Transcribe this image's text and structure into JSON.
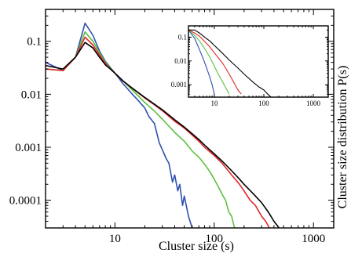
{
  "chart_data": [
    {
      "type": "line",
      "panel": "main",
      "xlabel": "Cluster size (s)",
      "ylabel": "Cluster size distribution P(s)",
      "xscale": "log",
      "yscale": "log",
      "xlim": [
        2,
        1600
      ],
      "ylim": [
        3e-05,
        0.4
      ],
      "xticks": [
        {
          "value": 10,
          "label": "10"
        },
        {
          "value": 100,
          "label": "100"
        },
        {
          "value": 1000,
          "label": "1000"
        }
      ],
      "yticks": [
        {
          "value": 0.1,
          "label": "0.1"
        },
        {
          "value": 0.01,
          "label": "0.01"
        },
        {
          "value": 0.001,
          "label": "0.001"
        },
        {
          "value": 0.0001,
          "label": "0.0001"
        }
      ],
      "grid": false,
      "series": [
        {
          "color": "#3050b0",
          "x": [
            2,
            3,
            4,
            5,
            6,
            7,
            8,
            9,
            10,
            11,
            12,
            13,
            15,
            17,
            20,
            22,
            25,
            28,
            30,
            33,
            35,
            38,
            40,
            43,
            45,
            48,
            50,
            55,
            60
          ],
          "y": [
            0.04,
            0.028,
            0.05,
            0.22,
            0.13,
            0.065,
            0.042,
            0.032,
            0.025,
            0.02,
            0.016,
            0.0135,
            0.01,
            0.0078,
            0.0055,
            0.0038,
            0.0028,
            0.0012,
            0.0009,
            0.0006,
            0.0005,
            0.00022,
            0.0003,
            0.00015,
            0.0002,
            8e-05,
            0.00012,
            5e-05,
            3e-05
          ]
        },
        {
          "color": "#5cc040",
          "x": [
            2,
            3,
            4,
            5,
            6,
            7,
            8,
            9,
            10,
            12,
            15,
            20,
            25,
            30,
            40,
            50,
            60,
            70,
            80,
            90,
            100,
            110,
            120,
            130,
            140,
            150,
            160
          ],
          "y": [
            0.03,
            0.028,
            0.05,
            0.15,
            0.1,
            0.06,
            0.04,
            0.031,
            0.025,
            0.018,
            0.012,
            0.007,
            0.0048,
            0.0034,
            0.0019,
            0.0013,
            0.00085,
            0.00065,
            0.00048,
            0.00035,
            0.00025,
            0.00018,
            0.00013,
            0.0001,
            6e-05,
            5e-05,
            3e-05
          ]
        },
        {
          "color": "#e02828",
          "x": [
            2,
            3,
            4,
            5,
            6,
            7,
            8,
            9,
            10,
            12,
            15,
            20,
            25,
            30,
            40,
            50,
            60,
            70,
            80,
            100,
            120,
            150,
            180,
            200,
            230,
            260,
            300,
            330,
            360
          ],
          "y": [
            0.03,
            0.028,
            0.05,
            0.12,
            0.085,
            0.055,
            0.038,
            0.03,
            0.025,
            0.018,
            0.013,
            0.0085,
            0.0063,
            0.0049,
            0.0031,
            0.0023,
            0.0017,
            0.0013,
            0.001,
            0.0007,
            0.0005,
            0.0003,
            0.0002,
            0.00015,
            0.0001,
            8e-05,
            5e-05,
            4e-05,
            3e-05
          ]
        },
        {
          "color": "#000000",
          "x": [
            2,
            3,
            4,
            5,
            6,
            7,
            8,
            9,
            10,
            12,
            15,
            20,
            25,
            30,
            40,
            50,
            60,
            70,
            80,
            100,
            120,
            150,
            180,
            200,
            250,
            300,
            350,
            400,
            450
          ],
          "y": [
            0.035,
            0.03,
            0.05,
            0.095,
            0.075,
            0.05,
            0.036,
            0.03,
            0.025,
            0.018,
            0.013,
            0.0087,
            0.0065,
            0.0051,
            0.0033,
            0.0024,
            0.0018,
            0.0014,
            0.0011,
            0.00075,
            0.00055,
            0.00036,
            0.00025,
            0.0002,
            0.00013,
            9e-05,
            6e-05,
            4e-05,
            3e-05
          ]
        }
      ]
    },
    {
      "type": "line",
      "panel": "inset",
      "xscale": "log",
      "yscale": "log",
      "xlim": [
        3,
        2000
      ],
      "ylim": [
        0.0003,
        0.3
      ],
      "xticks": [
        {
          "value": 10,
          "label": "10"
        },
        {
          "value": 100,
          "label": "100"
        },
        {
          "value": 1000,
          "label": "1000"
        }
      ],
      "yticks": [
        {
          "value": 0.1,
          "label": "0.1"
        },
        {
          "value": 0.01,
          "label": "0.01"
        },
        {
          "value": 0.001,
          "label": "0.001"
        }
      ],
      "series": [
        {
          "color": "#3050b0",
          "x": [
            3,
            4,
            5,
            6,
            7,
            8,
            9,
            10
          ],
          "y": [
            0.2,
            0.09,
            0.03,
            0.012,
            0.005,
            0.0022,
            0.001,
            0.0004
          ]
        },
        {
          "color": "#5cc040",
          "x": [
            3,
            4,
            5,
            6,
            8,
            10,
            12,
            15,
            18,
            20
          ],
          "y": [
            0.2,
            0.12,
            0.07,
            0.04,
            0.015,
            0.006,
            0.0028,
            0.0012,
            0.0006,
            0.0004
          ]
        },
        {
          "color": "#e02828",
          "x": [
            3,
            4,
            5,
            6,
            8,
            10,
            15,
            20,
            25,
            30,
            35
          ],
          "y": [
            0.2,
            0.15,
            0.11,
            0.075,
            0.04,
            0.022,
            0.0075,
            0.0028,
            0.0012,
            0.0006,
            0.0004
          ]
        },
        {
          "color": "#000000",
          "x": [
            3,
            4,
            5,
            6,
            8,
            10,
            15,
            20,
            30,
            40,
            60,
            80,
            100,
            120,
            140
          ],
          "y": [
            0.2,
            0.2,
            0.15,
            0.11,
            0.07,
            0.045,
            0.02,
            0.011,
            0.005,
            0.0028,
            0.0013,
            0.0008,
            0.0006,
            0.0004,
            0.0003
          ]
        }
      ]
    }
  ]
}
